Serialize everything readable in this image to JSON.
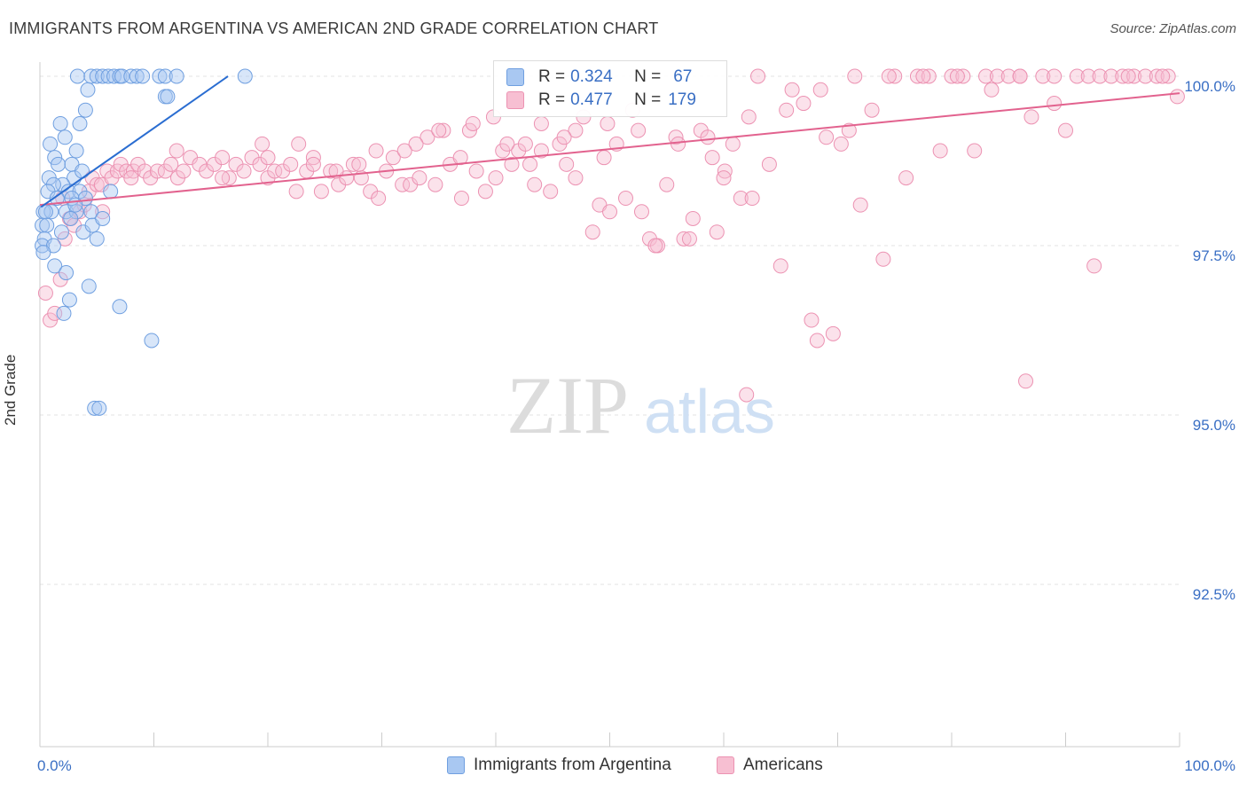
{
  "header": {
    "title": "IMMIGRANTS FROM ARGENTINA VS AMERICAN 2ND GRADE CORRELATION CHART",
    "source": "Source: ZipAtlas.com"
  },
  "watermark": {
    "zip": "ZIP",
    "atlas": "atlas"
  },
  "legend": {
    "r_label": "R =",
    "n_label": "N =",
    "rows": [
      {
        "r": "0.324",
        "n": "67"
      },
      {
        "r": "0.477",
        "n": "179"
      }
    ]
  },
  "colors": {
    "blue_fill": "#a9c8f2",
    "blue_stroke": "#6f9fe0",
    "blue_line": "#2a6dd1",
    "pink_fill": "#f7bfd2",
    "pink_stroke": "#ec92b2",
    "pink_line": "#e2628e",
    "tick_label": "#3a6fc4",
    "grid": "#e3e3e3"
  },
  "chart_data": {
    "type": "scatter",
    "title": "IMMIGRANTS FROM ARGENTINA VS AMERICAN 2ND GRADE CORRELATION CHART",
    "xlabel": "",
    "ylabel": "2nd Grade",
    "xlim": [
      0,
      100
    ],
    "ylim": [
      90.5,
      100.4
    ],
    "x_tick_labels": [
      "0.0%",
      "100.0%"
    ],
    "y_ticks": [
      100.0,
      97.5,
      95.0,
      92.5
    ],
    "y_tick_labels": [
      "100.0%",
      "97.5%",
      "95.0%",
      "92.5%"
    ],
    "grid": true,
    "legend_position": "bottom",
    "series": [
      {
        "name": "Immigrants from Argentina",
        "r": 0.324,
        "n": 67,
        "trend": {
          "x": [
            0.1,
            16.5
          ],
          "y": [
            98.07,
            100.0
          ]
        },
        "points": [
          [
            3.3,
            100
          ],
          [
            4.5,
            100
          ],
          [
            5.0,
            100
          ],
          [
            5.5,
            100
          ],
          [
            6.0,
            100
          ],
          [
            6.5,
            100
          ],
          [
            7.0,
            100
          ],
          [
            7.2,
            100
          ],
          [
            8.0,
            100
          ],
          [
            8.5,
            100
          ],
          [
            9.0,
            100
          ],
          [
            10.5,
            100
          ],
          [
            11.0,
            100
          ],
          [
            12.0,
            100
          ],
          [
            18.0,
            100
          ],
          [
            4.2,
            99.8
          ],
          [
            11.0,
            99.7
          ],
          [
            11.2,
            99.7
          ],
          [
            4.0,
            99.5
          ],
          [
            3.5,
            99.3
          ],
          [
            1.8,
            99.3
          ],
          [
            2.2,
            99.1
          ],
          [
            3.2,
            98.9
          ],
          [
            1.3,
            98.8
          ],
          [
            1.6,
            98.7
          ],
          [
            2.8,
            98.7
          ],
          [
            3.0,
            98.5
          ],
          [
            3.7,
            98.6
          ],
          [
            0.8,
            98.5
          ],
          [
            2.0,
            98.4
          ],
          [
            1.2,
            98.4
          ],
          [
            2.5,
            98.3
          ],
          [
            0.7,
            98.3
          ],
          [
            3.5,
            98.3
          ],
          [
            1.5,
            98.2
          ],
          [
            2.8,
            98.2
          ],
          [
            4.0,
            98.2
          ],
          [
            0.3,
            98.0
          ],
          [
            1.0,
            98.0
          ],
          [
            0.5,
            98.0
          ],
          [
            2.3,
            98.0
          ],
          [
            3.2,
            98.0
          ],
          [
            4.5,
            98.0
          ],
          [
            0.2,
            97.8
          ],
          [
            0.6,
            97.8
          ],
          [
            2.7,
            97.9
          ],
          [
            3.8,
            97.7
          ],
          [
            4.6,
            97.8
          ],
          [
            0.4,
            97.6
          ],
          [
            5.0,
            97.6
          ],
          [
            0.2,
            97.5
          ],
          [
            1.2,
            97.5
          ],
          [
            0.3,
            97.4
          ],
          [
            1.3,
            97.2
          ],
          [
            2.3,
            97.1
          ],
          [
            4.3,
            96.9
          ],
          [
            2.6,
            96.7
          ],
          [
            7.0,
            96.6
          ],
          [
            2.1,
            96.5
          ],
          [
            9.8,
            96.1
          ],
          [
            4.8,
            95.1
          ],
          [
            5.2,
            95.1
          ],
          [
            3.1,
            98.1
          ],
          [
            5.5,
            97.9
          ],
          [
            1.9,
            97.7
          ],
          [
            6.2,
            98.3
          ],
          [
            0.9,
            99.0
          ]
        ]
      },
      {
        "name": "Americans",
        "r": 0.477,
        "n": 179,
        "trend": {
          "x": [
            0,
            100
          ],
          "y": [
            98.1,
            99.75
          ]
        },
        "points": [
          [
            0.5,
            96.8
          ],
          [
            0.9,
            96.4
          ],
          [
            1.3,
            96.5
          ],
          [
            1.8,
            97.0
          ],
          [
            2.2,
            97.6
          ],
          [
            2.6,
            97.9
          ],
          [
            3.0,
            97.8
          ],
          [
            3.5,
            98.0
          ],
          [
            3.9,
            98.1
          ],
          [
            4.3,
            98.3
          ],
          [
            4.6,
            98.5
          ],
          [
            5.0,
            98.4
          ],
          [
            5.4,
            98.4
          ],
          [
            5.9,
            98.6
          ],
          [
            6.3,
            98.5
          ],
          [
            6.8,
            98.6
          ],
          [
            7.1,
            98.7
          ],
          [
            7.6,
            98.6
          ],
          [
            8.2,
            98.6
          ],
          [
            8.6,
            98.7
          ],
          [
            9.2,
            98.6
          ],
          [
            9.7,
            98.5
          ],
          [
            10.3,
            98.6
          ],
          [
            11.0,
            98.6
          ],
          [
            11.5,
            98.7
          ],
          [
            12.1,
            98.5
          ],
          [
            12.6,
            98.6
          ],
          [
            13.2,
            98.8
          ],
          [
            14.0,
            98.7
          ],
          [
            14.6,
            98.6
          ],
          [
            15.3,
            98.7
          ],
          [
            16.0,
            98.8
          ],
          [
            16.6,
            98.5
          ],
          [
            17.2,
            98.7
          ],
          [
            17.9,
            98.6
          ],
          [
            18.6,
            98.8
          ],
          [
            19.3,
            98.7
          ],
          [
            20.0,
            98.5
          ],
          [
            20.6,
            98.6
          ],
          [
            21.3,
            98.6
          ],
          [
            22.0,
            98.7
          ],
          [
            22.7,
            99.0
          ],
          [
            23.4,
            98.6
          ],
          [
            24.0,
            98.8
          ],
          [
            24.7,
            98.3
          ],
          [
            25.5,
            98.6
          ],
          [
            26.2,
            98.4
          ],
          [
            26.9,
            98.5
          ],
          [
            27.5,
            98.7
          ],
          [
            28.2,
            98.5
          ],
          [
            29.0,
            98.3
          ],
          [
            29.7,
            98.2
          ],
          [
            30.4,
            98.6
          ],
          [
            31.0,
            98.8
          ],
          [
            31.8,
            98.4
          ],
          [
            32.5,
            98.4
          ],
          [
            33.3,
            98.5
          ],
          [
            34.0,
            99.1
          ],
          [
            34.7,
            98.4
          ],
          [
            35.4,
            99.2
          ],
          [
            36.0,
            98.7
          ],
          [
            36.9,
            98.8
          ],
          [
            37.7,
            99.2
          ],
          [
            38.3,
            98.6
          ],
          [
            39.1,
            98.3
          ],
          [
            39.8,
            99.4
          ],
          [
            40.6,
            98.9
          ],
          [
            41.4,
            98.7
          ],
          [
            42.0,
            98.9
          ],
          [
            42.6,
            99.0
          ],
          [
            43.4,
            98.4
          ],
          [
            44.0,
            99.3
          ],
          [
            44.8,
            98.3
          ],
          [
            45.6,
            99.0
          ],
          [
            46.2,
            98.7
          ],
          [
            47.0,
            99.2
          ],
          [
            47.7,
            99.4
          ],
          [
            48.5,
            97.7
          ],
          [
            49.1,
            98.1
          ],
          [
            49.8,
            99.3
          ],
          [
            50.6,
            99.0
          ],
          [
            51.4,
            98.2
          ],
          [
            52.0,
            99.5
          ],
          [
            52.8,
            98.0
          ],
          [
            53.5,
            97.6
          ],
          [
            54.2,
            97.5
          ],
          [
            55.0,
            98.4
          ],
          [
            55.8,
            99.1
          ],
          [
            56.5,
            97.6
          ],
          [
            57.3,
            97.9
          ],
          [
            58.0,
            99.2
          ],
          [
            58.6,
            99.1
          ],
          [
            59.4,
            97.7
          ],
          [
            60.1,
            98.6
          ],
          [
            60.8,
            99.0
          ],
          [
            61.5,
            98.2
          ],
          [
            62.2,
            99.4
          ],
          [
            63.0,
            100
          ],
          [
            64.0,
            98.7
          ],
          [
            65.0,
            97.2
          ],
          [
            66.0,
            99.8
          ],
          [
            67.0,
            99.6
          ],
          [
            67.7,
            96.4
          ],
          [
            68.2,
            96.1
          ],
          [
            69.0,
            99.1
          ],
          [
            69.6,
            96.2
          ],
          [
            70.3,
            99.0
          ],
          [
            71.0,
            99.2
          ],
          [
            72.0,
            98.1
          ],
          [
            73.0,
            99.5
          ],
          [
            74.0,
            97.3
          ],
          [
            75.0,
            100
          ],
          [
            76.0,
            98.5
          ],
          [
            77.0,
            100
          ],
          [
            78.0,
            100
          ],
          [
            79.0,
            98.9
          ],
          [
            80.0,
            100
          ],
          [
            81.0,
            100
          ],
          [
            82.0,
            98.9
          ],
          [
            83.0,
            100
          ],
          [
            84.0,
            100
          ],
          [
            85.0,
            100
          ],
          [
            86.0,
            100
          ],
          [
            86.5,
            95.5
          ],
          [
            87.0,
            99.4
          ],
          [
            88.0,
            100
          ],
          [
            89.0,
            100
          ],
          [
            90.0,
            99.2
          ],
          [
            91.0,
            100
          ],
          [
            92.0,
            100
          ],
          [
            93.0,
            100
          ],
          [
            94.0,
            100
          ],
          [
            95.0,
            100
          ],
          [
            96.0,
            100
          ],
          [
            97.0,
            100
          ],
          [
            98.0,
            100
          ],
          [
            99.0,
            100
          ],
          [
            99.8,
            99.7
          ],
          [
            2.0,
            98.2
          ],
          [
            5.5,
            98.0
          ],
          [
            8.0,
            98.5
          ],
          [
            12.0,
            98.9
          ],
          [
            16.0,
            98.5
          ],
          [
            19.5,
            99.0
          ],
          [
            22.5,
            98.3
          ],
          [
            26.0,
            98.6
          ],
          [
            29.5,
            98.9
          ],
          [
            33.0,
            99.0
          ],
          [
            37.0,
            98.2
          ],
          [
            40.0,
            98.5
          ],
          [
            43.0,
            98.7
          ],
          [
            46.0,
            99.1
          ],
          [
            49.5,
            98.8
          ],
          [
            52.5,
            99.2
          ],
          [
            56.0,
            99.0
          ],
          [
            59.0,
            98.8
          ],
          [
            62.5,
            98.2
          ],
          [
            65.5,
            99.5
          ],
          [
            68.5,
            99.8
          ],
          [
            71.5,
            100
          ],
          [
            74.5,
            100
          ],
          [
            77.5,
            100
          ],
          [
            80.5,
            100
          ],
          [
            83.5,
            99.8
          ],
          [
            86.0,
            100
          ],
          [
            89.0,
            99.6
          ],
          [
            92.5,
            97.2
          ],
          [
            95.5,
            100
          ],
          [
            98.5,
            100
          ],
          [
            62.0,
            95.3
          ],
          [
            60.0,
            98.5
          ],
          [
            57.0,
            97.6
          ],
          [
            54.0,
            97.5
          ],
          [
            50.0,
            98.0
          ],
          [
            47.0,
            98.5
          ],
          [
            44.0,
            98.9
          ],
          [
            41.0,
            99.0
          ],
          [
            38.0,
            99.3
          ],
          [
            35.0,
            99.2
          ],
          [
            32.0,
            98.9
          ],
          [
            28.0,
            98.7
          ],
          [
            24.0,
            98.7
          ],
          [
            20.0,
            98.8
          ]
        ]
      }
    ]
  }
}
